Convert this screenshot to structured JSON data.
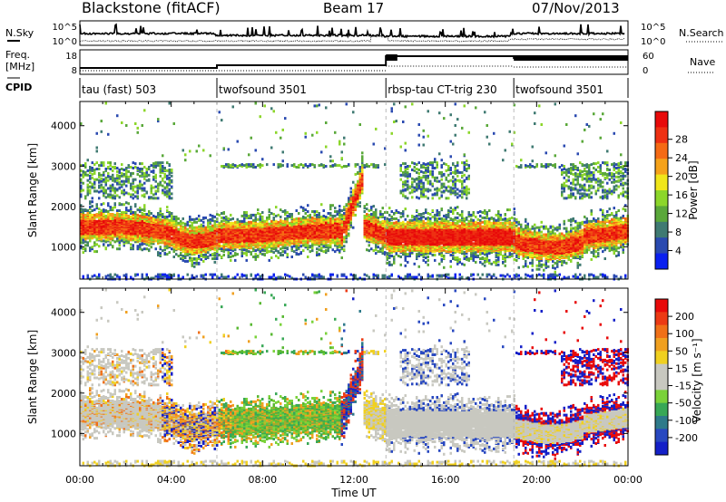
{
  "header": {
    "station": "Blackstone (fitACF)",
    "beam": "Beam 17",
    "date": "07/Nov/2013"
  },
  "noise_panel": {
    "left_label": "N.Sky",
    "right_label": "N.Search",
    "left_ticks": [
      "10^5",
      "10^0"
    ],
    "right_ticks": [
      "10^5",
      "10^0"
    ]
  },
  "freq_panel": {
    "left_label_1": "Freq.",
    "left_label_2": "[MHz]",
    "right_label": "Nave",
    "left_ticks": [
      "18",
      "8"
    ],
    "right_ticks": [
      "60",
      "0"
    ]
  },
  "cpid": {
    "label": "CPID",
    "programs": [
      {
        "name": "tau (fast) 503",
        "start_hour": 0
      },
      {
        "name": "twofsound 3501",
        "start_hour": 6.0
      },
      {
        "name": "rbsp-tau CT-trig 230",
        "start_hour": 13.4
      },
      {
        "name": "twofsound 3501",
        "start_hour": 19.0
      }
    ]
  },
  "chart_data": [
    {
      "type": "heatmap",
      "name": "power",
      "xlabel": "",
      "ylabel": "Slant Range [km]",
      "xlim": [
        0,
        24
      ],
      "ylim": [
        200,
        4600
      ],
      "yticks": [
        1000,
        2000,
        3000,
        4000
      ],
      "colorbar": {
        "label": "Power [dB]",
        "ticks": [
          "4",
          "8",
          "12",
          "16",
          "20",
          "24",
          "28"
        ],
        "colors": [
          "#0a20f0",
          "#2a4ab0",
          "#3f7a72",
          "#5aa83a",
          "#8cd62a",
          "#f0e61a",
          "#f5a21a",
          "#f56a14",
          "#ee3012",
          "#e80a0a"
        ]
      }
    },
    {
      "type": "heatmap",
      "name": "velocity",
      "xlabel": "Time UT",
      "ylabel": "Slant Range [km]",
      "xlim": [
        0,
        24
      ],
      "ylim": [
        200,
        4600
      ],
      "yticks": [
        1000,
        2000,
        3000,
        4000
      ],
      "xticks": [
        "00:00",
        "04:00",
        "08:00",
        "12:00",
        "16:00",
        "20:00",
        "00:00"
      ],
      "colorbar": {
        "label": "Velocity [m s⁻¹]",
        "ticks": [
          "200",
          "100",
          "50",
          "15",
          "-15",
          "-50",
          "-100",
          "-200"
        ],
        "colors": [
          "#1420c8",
          "#2848c0",
          "#2e7a8a",
          "#38a856",
          "#7ad23a",
          "#c8c8c0",
          "#c8c8c0",
          "#f0d020",
          "#f0a020",
          "#f07018",
          "#ec3a14",
          "#e80a0a"
        ]
      }
    }
  ]
}
